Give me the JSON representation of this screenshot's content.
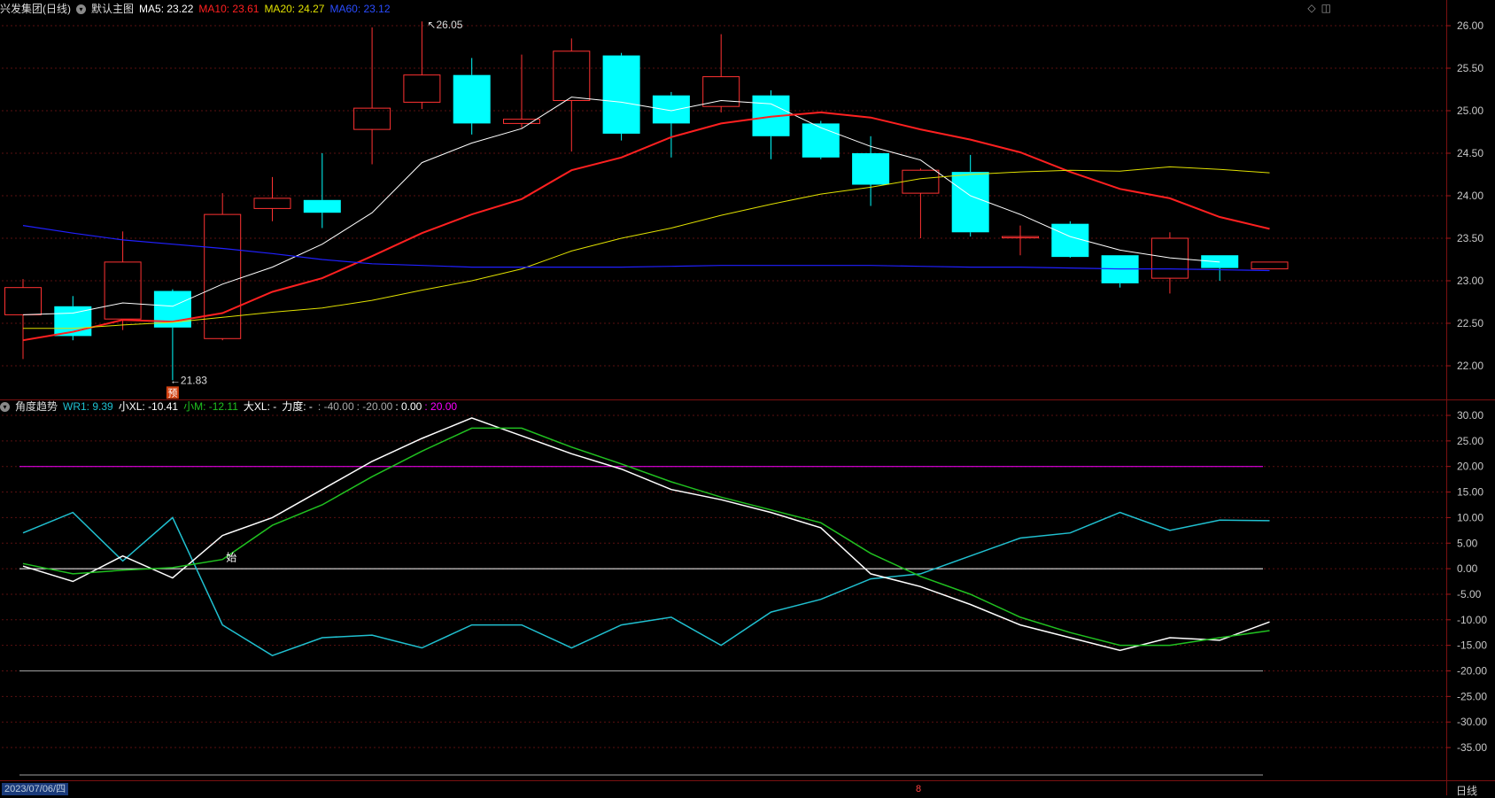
{
  "header_main": {
    "name": "兴发集团(日线)",
    "template": "默认主图",
    "ma5": "MA5: 23.22",
    "ma10": "MA10: 23.61",
    "ma20": "MA20: 24.27",
    "ma60": "MA60: 23.12"
  },
  "header_sub": {
    "name": "角度趋势",
    "wr1": "WR1: 9.39",
    "xxl": "小XL: -10.41",
    "xm": "小M: -12.11",
    "dxl": "大XL: -",
    "lidu": "力度: -",
    "lv1": ": -40.00",
    "lv2": ": -20.00",
    "lv3": ": 0.00",
    "lv4": ": 20.00"
  },
  "toolbar": {
    "icon1": "◇",
    "icon2": "◫"
  },
  "footer": {
    "date": "2023/07/06/四",
    "period": "日线",
    "marker": "8"
  },
  "colors": {
    "up": "#ff3232",
    "down": "#00ffff",
    "ma5": "#ffffff",
    "ma10": "#ff2020",
    "ma20": "#e0e000",
    "ma60": "#2020ff",
    "wr1": "#20c0d0",
    "xxl": "#ffffff",
    "xm": "#20c020",
    "magenta": "#ff00ff"
  },
  "chart_data": [
    {
      "type": "candlestick",
      "title": "兴发集团(日线)",
      "ylim": [
        21.6,
        26.2
      ],
      "y_ticks": [
        "26.00",
        "25.50",
        "25.00",
        "24.50",
        "24.00",
        "23.50",
        "23.00",
        "22.50",
        "22.00"
      ],
      "annotations": {
        "high": "26.05",
        "low": "21.83",
        "pre_label": "预"
      },
      "candles": [
        {
          "o": 22.6,
          "h": 23.02,
          "l": 22.08,
          "c": 22.92
        },
        {
          "o": 22.7,
          "h": 22.82,
          "l": 22.3,
          "c": 22.35
        },
        {
          "o": 22.55,
          "h": 23.58,
          "l": 22.42,
          "c": 23.22
        },
        {
          "o": 22.88,
          "h": 22.9,
          "l": 21.83,
          "c": 22.45
        },
        {
          "o": 22.32,
          "h": 24.03,
          "l": 22.3,
          "c": 23.78
        },
        {
          "o": 23.85,
          "h": 24.22,
          "l": 23.7,
          "c": 23.97
        },
        {
          "o": 23.95,
          "h": 24.5,
          "l": 23.62,
          "c": 23.8
        },
        {
          "o": 24.78,
          "h": 25.98,
          "l": 24.37,
          "c": 25.03
        },
        {
          "o": 25.1,
          "h": 26.05,
          "l": 25.02,
          "c": 25.42
        },
        {
          "o": 25.42,
          "h": 25.62,
          "l": 24.72,
          "c": 24.85
        },
        {
          "o": 24.85,
          "h": 25.66,
          "l": 24.8,
          "c": 24.9
        },
        {
          "o": 25.12,
          "h": 25.85,
          "l": 24.52,
          "c": 25.7
        },
        {
          "o": 25.65,
          "h": 25.68,
          "l": 24.65,
          "c": 24.73
        },
        {
          "o": 25.18,
          "h": 25.22,
          "l": 24.45,
          "c": 24.85
        },
        {
          "o": 25.05,
          "h": 25.9,
          "l": 24.98,
          "c": 25.4
        },
        {
          "o": 25.18,
          "h": 25.24,
          "l": 24.43,
          "c": 24.7
        },
        {
          "o": 24.85,
          "h": 24.88,
          "l": 24.43,
          "c": 24.45
        },
        {
          "o": 24.5,
          "h": 24.7,
          "l": 23.88,
          "c": 24.13
        },
        {
          "o": 24.03,
          "h": 24.32,
          "l": 23.5,
          "c": 24.3
        },
        {
          "o": 24.28,
          "h": 24.48,
          "l": 23.52,
          "c": 23.57
        },
        {
          "o": 23.52,
          "h": 23.65,
          "l": 23.3,
          "c": 23.52
        },
        {
          "o": 23.67,
          "h": 23.7,
          "l": 23.27,
          "c": 23.28
        },
        {
          "o": 23.3,
          "h": 23.3,
          "l": 22.92,
          "c": 22.97
        },
        {
          "o": 23.03,
          "h": 23.57,
          "l": 22.85,
          "c": 23.5
        },
        {
          "o": 23.3,
          "h": 23.3,
          "l": 23.0,
          "c": 23.15
        },
        {
          "o": 23.14,
          "h": 23.22,
          "l": 23.14,
          "c": 23.22
        }
      ],
      "series": [
        {
          "name": "MA5",
          "values": [
            22.6,
            22.62,
            22.74,
            22.7,
            22.96,
            23.16,
            23.43,
            23.8,
            24.39,
            24.62,
            24.79,
            25.16,
            25.1,
            25.0,
            25.12,
            25.08,
            24.8,
            24.58,
            24.42,
            24.0,
            23.78,
            23.52,
            23.36,
            23.27,
            23.22,
            null
          ]
        },
        {
          "name": "MA10",
          "values": [
            22.3,
            22.4,
            22.54,
            22.52,
            22.62,
            22.87,
            23.03,
            23.29,
            23.56,
            23.78,
            23.96,
            24.3,
            24.45,
            24.69,
            24.85,
            24.93,
            24.98,
            24.92,
            24.78,
            24.66,
            24.51,
            24.28,
            24.08,
            23.97,
            23.75,
            23.61
          ]
        },
        {
          "name": "MA20",
          "values": [
            22.44,
            22.44,
            22.48,
            22.51,
            22.57,
            22.63,
            22.68,
            22.77,
            22.89,
            23.0,
            23.14,
            23.35,
            23.5,
            23.62,
            23.77,
            23.9,
            24.02,
            24.1,
            24.2,
            24.25,
            24.28,
            24.3,
            24.29,
            24.34,
            24.31,
            24.27
          ]
        },
        {
          "name": "MA60",
          "values": [
            23.65,
            23.56,
            23.48,
            23.43,
            23.38,
            23.32,
            23.25,
            23.2,
            23.18,
            23.16,
            23.16,
            23.16,
            23.16,
            23.17,
            23.18,
            23.18,
            23.18,
            23.18,
            23.17,
            23.16,
            23.16,
            23.15,
            23.14,
            23.14,
            23.13,
            23.12
          ]
        }
      ]
    },
    {
      "type": "line",
      "title": "角度趋势",
      "ylim": [
        -38,
        32
      ],
      "y_ticks": [
        "30.00",
        "25.00",
        "20.00",
        "15.00",
        "10.00",
        "5.00",
        "0.00",
        "-5.00",
        "-10.00",
        "-15.00",
        "-20.00",
        "-25.00",
        "-30.00",
        "-35.00"
      ],
      "reference_lines": [
        20,
        0,
        -20,
        -40
      ],
      "start_label": "始",
      "series": [
        {
          "name": "WR1",
          "values": [
            7,
            11,
            1.5,
            10,
            -11,
            -17,
            -13.5,
            -13,
            -15.5,
            -11,
            -11,
            -15.5,
            -11,
            -9.5,
            -15,
            -8.5,
            -6,
            -2,
            -1,
            2.5,
            6,
            7,
            11,
            7.5,
            9.5,
            9.39
          ]
        },
        {
          "name": "小XL",
          "values": [
            0.5,
            -2.5,
            2.5,
            -1.8,
            6.5,
            10,
            15.5,
            21,
            25.5,
            29.5,
            26,
            22.5,
            19.5,
            15.5,
            13.5,
            11,
            8,
            -1,
            -3.5,
            -7,
            -11,
            -13.5,
            -16,
            -13.5,
            -14,
            -10.41
          ]
        },
        {
          "name": "小M",
          "values": [
            1,
            -1,
            -0.3,
            0.2,
            1.8,
            8.5,
            12.5,
            18,
            23,
            27.5,
            27.5,
            23.8,
            20.5,
            17,
            14,
            11.5,
            9,
            3,
            -1.5,
            -5,
            -9.5,
            -12.5,
            -15,
            -15,
            -13.5,
            -12.11
          ]
        }
      ]
    }
  ]
}
